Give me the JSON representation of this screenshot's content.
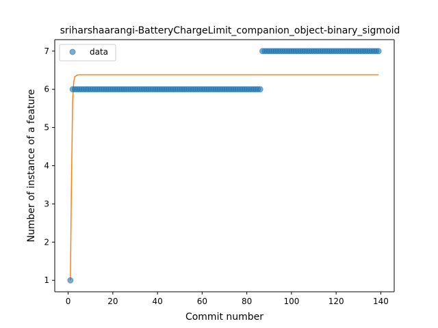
{
  "chart_data": {
    "type": "scatter",
    "title": "sriharshaarangi-BatteryChargeLimit_companion_object-binary_sigmoid",
    "xlabel": "Commit number",
    "ylabel": "Number of instance of a feature",
    "xlim": [
      -6.0,
      146.0
    ],
    "ylim": [
      0.7,
      7.3
    ],
    "xticks": [
      0,
      20,
      40,
      60,
      80,
      100,
      120,
      140
    ],
    "yticks": [
      1,
      2,
      3,
      4,
      5,
      6,
      7
    ],
    "legend": {
      "position": "top-left",
      "entries": [
        "data"
      ]
    },
    "colors": {
      "data": "#1f77b4",
      "fit": "#ff7f0e",
      "axes": "#000000"
    },
    "series": [
      {
        "name": "data",
        "kind": "scatter",
        "segments": [
          {
            "x_start": 1,
            "x_end": 1,
            "y": 1
          },
          {
            "x_start": 2,
            "x_end": 86,
            "y": 6
          },
          {
            "x_start": 87,
            "x_end": 139,
            "y": 7
          }
        ]
      },
      {
        "kind": "line",
        "points": [
          [
            1,
            1.0
          ],
          [
            1.5,
            3.6
          ],
          [
            2,
            5.7
          ],
          [
            2.5,
            6.2
          ],
          [
            3,
            6.33
          ],
          [
            4,
            6.37
          ],
          [
            5,
            6.38
          ],
          [
            139,
            6.38
          ]
        ]
      }
    ]
  }
}
